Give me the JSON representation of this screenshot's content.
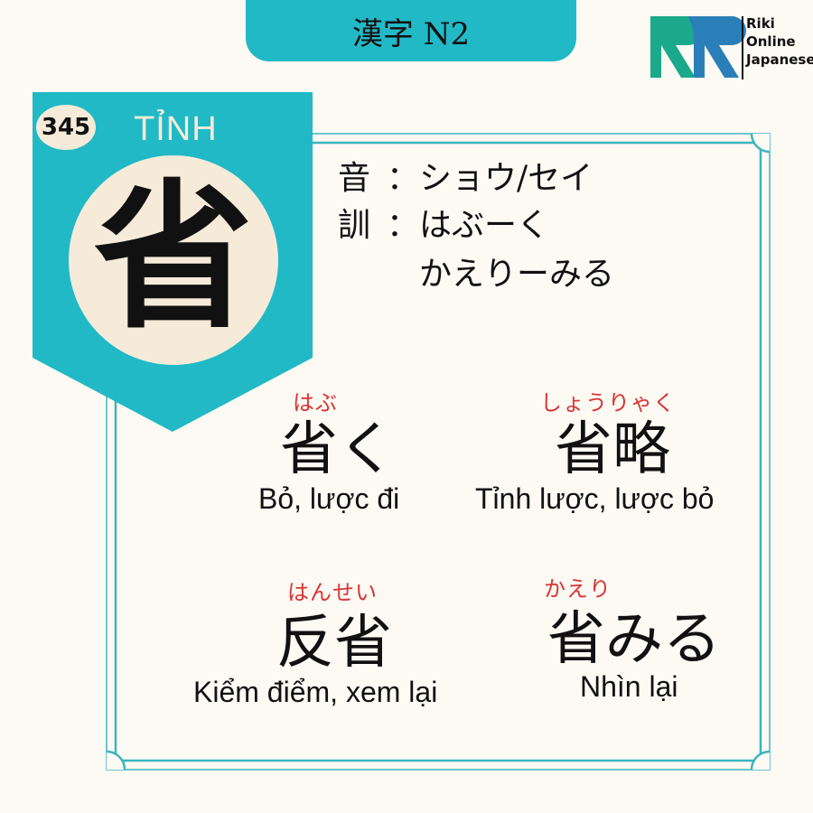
{
  "header": {
    "title": "漢字 N2"
  },
  "logo": {
    "lines": [
      "Riki",
      "Online",
      "Japanese"
    ],
    "icon": "riki-logo-icon"
  },
  "colors": {
    "teal": "#21b9c6",
    "cream": "#f6ebd8",
    "background": "#fdf9f3",
    "furigana": "#d93434",
    "frame": "#3bb5bf"
  },
  "kanji_card": {
    "number": "345",
    "han_viet": "TỈNH",
    "kanji": "省"
  },
  "readings": {
    "on_label": "音",
    "on_value": "：ショウ/セイ",
    "kun_label": "訓",
    "kun_value_1": "：はぶーく",
    "kun_value_2": "かえりーみる"
  },
  "vocabulary": [
    {
      "furigana": "はぶ",
      "word": "省く",
      "meaning": "Bỏ, lược đi"
    },
    {
      "furigana": "しょうりゃく",
      "word": "省略",
      "meaning": "Tỉnh lược, lược bỏ"
    },
    {
      "furigana": "はんせい",
      "word": "反省",
      "meaning": "Kiểm điểm, xem lại"
    },
    {
      "furigana": "かえり",
      "word": "省みる",
      "meaning": "Nhìn lại"
    }
  ]
}
